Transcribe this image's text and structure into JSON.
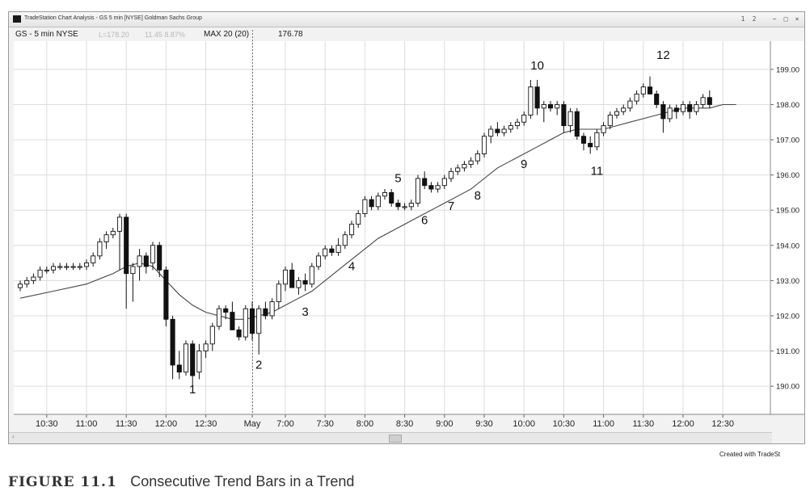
{
  "window": {
    "title": "TradeStation Chart Analysis - GS 5 min [NYSE] Goldman Sachs Group",
    "buttons": [
      "1",
      "2",
      "−",
      "□",
      "×"
    ]
  },
  "infobar": {
    "symbol": "GS - 5 min NYSE",
    "last": "L=178.20",
    "change": "11.45 8.87%",
    "indicator": "MAX 20 (20)",
    "indicator_value": "176.78"
  },
  "credit": "Created with TradeSt",
  "caption": {
    "label": "FIGURE 11.1",
    "text": "Consecutive Trend Bars in a Trend"
  },
  "colors": {
    "bull": "#ffffff",
    "bear": "#111111",
    "ema": "#444444",
    "grid": "#dcdcdc"
  },
  "chart_data": {
    "type": "candlestick",
    "price_axis": {
      "ticks": [
        "199.00",
        "198.00",
        "197.00",
        "196.00",
        "195.00",
        "194.00",
        "193.00",
        "192.00",
        "191.00",
        "190.00"
      ],
      "ylim": [
        189.2,
        199.8
      ]
    },
    "time_axis": {
      "ticks": [
        {
          "label": "10:30",
          "bar": 4
        },
        {
          "label": "11:00",
          "bar": 10
        },
        {
          "label": "11:30",
          "bar": 16
        },
        {
          "label": "12:00",
          "bar": 22
        },
        {
          "label": "12:30",
          "bar": 28
        },
        {
          "label": "May",
          "bar": 35
        },
        {
          "label": "7:00",
          "bar": 40
        },
        {
          "label": "7:30",
          "bar": 46
        },
        {
          "label": "8:00",
          "bar": 52
        },
        {
          "label": "8:30",
          "bar": 58
        },
        {
          "label": "9:00",
          "bar": 64
        },
        {
          "label": "9:30",
          "bar": 70
        },
        {
          "label": "10:00",
          "bar": 76
        },
        {
          "label": "10:30",
          "bar": 82
        },
        {
          "label": "11:00",
          "bar": 88
        },
        {
          "label": "11:30",
          "bar": 94
        },
        {
          "label": "12:00",
          "bar": 100
        },
        {
          "label": "12:30",
          "bar": 106
        }
      ]
    },
    "session_break_bar": 35,
    "candles": [
      [
        192.8,
        193.0,
        192.7,
        192.9
      ],
      [
        192.9,
        193.1,
        192.8,
        193.0
      ],
      [
        193.0,
        193.2,
        192.9,
        193.1
      ],
      [
        193.1,
        193.4,
        193.0,
        193.3
      ],
      [
        193.3,
        193.4,
        193.2,
        193.3
      ],
      [
        193.3,
        193.5,
        193.2,
        193.4
      ],
      [
        193.4,
        193.5,
        193.3,
        193.4
      ],
      [
        193.4,
        193.5,
        193.3,
        193.4
      ],
      [
        193.4,
        193.5,
        193.3,
        193.4
      ],
      [
        193.4,
        193.5,
        193.3,
        193.4
      ],
      [
        193.4,
        193.6,
        193.3,
        193.5
      ],
      [
        193.5,
        193.8,
        193.4,
        193.7
      ],
      [
        193.7,
        194.2,
        193.6,
        194.1
      ],
      [
        194.1,
        194.4,
        193.9,
        194.3
      ],
      [
        194.3,
        194.5,
        194.2,
        194.4
      ],
      [
        194.4,
        194.9,
        193.3,
        194.8
      ],
      [
        194.8,
        194.9,
        192.2,
        193.2
      ],
      [
        193.2,
        193.5,
        192.4,
        193.4
      ],
      [
        193.4,
        193.9,
        193.0,
        193.7
      ],
      [
        193.7,
        193.8,
        193.2,
        193.4
      ],
      [
        193.5,
        194.1,
        193.3,
        194.0
      ],
      [
        194.0,
        194.1,
        193.1,
        193.3
      ],
      [
        193.3,
        193.4,
        191.7,
        191.9
      ],
      [
        191.9,
        192.0,
        190.2,
        190.6
      ],
      [
        190.6,
        191.0,
        190.2,
        190.4
      ],
      [
        190.4,
        191.3,
        190.3,
        191.2
      ],
      [
        191.2,
        191.3,
        190.0,
        190.3
      ],
      [
        190.4,
        191.2,
        190.2,
        191.0
      ],
      [
        191.0,
        191.3,
        190.8,
        191.2
      ],
      [
        191.2,
        191.8,
        191.0,
        191.7
      ],
      [
        191.7,
        192.3,
        191.6,
        192.2
      ],
      [
        192.2,
        192.3,
        191.9,
        192.1
      ],
      [
        192.1,
        192.4,
        191.6,
        191.6
      ],
      [
        191.6,
        191.7,
        191.3,
        191.4
      ],
      [
        191.4,
        192.3,
        191.3,
        192.2
      ],
      [
        192.2,
        192.4,
        191.3,
        191.5
      ],
      [
        191.5,
        192.3,
        190.9,
        192.2
      ],
      [
        192.2,
        192.4,
        191.9,
        192.0
      ],
      [
        192.0,
        192.5,
        191.9,
        192.4
      ],
      [
        192.4,
        193.0,
        192.2,
        192.9
      ],
      [
        192.9,
        193.4,
        192.7,
        193.3
      ],
      [
        193.3,
        193.5,
        192.8,
        192.8
      ],
      [
        192.8,
        193.1,
        192.6,
        193.0
      ],
      [
        193.0,
        193.2,
        192.7,
        192.9
      ],
      [
        192.9,
        193.5,
        192.8,
        193.4
      ],
      [
        193.4,
        193.8,
        193.3,
        193.7
      ],
      [
        193.7,
        194.0,
        193.6,
        193.9
      ],
      [
        193.9,
        194.0,
        193.7,
        193.8
      ],
      [
        193.8,
        194.2,
        193.7,
        194.0
      ],
      [
        194.0,
        194.4,
        193.9,
        194.3
      ],
      [
        194.3,
        194.7,
        194.2,
        194.6
      ],
      [
        194.6,
        195.0,
        194.5,
        194.9
      ],
      [
        194.9,
        195.4,
        194.8,
        195.3
      ],
      [
        195.3,
        195.4,
        195.0,
        195.1
      ],
      [
        195.1,
        195.5,
        195.0,
        195.4
      ],
      [
        195.4,
        195.6,
        195.3,
        195.5
      ],
      [
        195.5,
        195.6,
        195.1,
        195.2
      ],
      [
        195.2,
        195.3,
        195.0,
        195.1
      ],
      [
        195.1,
        195.2,
        195.0,
        195.1
      ],
      [
        195.1,
        195.3,
        195.0,
        195.2
      ],
      [
        195.2,
        196.0,
        195.1,
        195.9
      ],
      [
        195.9,
        196.1,
        195.6,
        195.7
      ],
      [
        195.7,
        195.8,
        195.5,
        195.6
      ],
      [
        195.6,
        195.8,
        195.5,
        195.7
      ],
      [
        195.7,
        196.0,
        195.6,
        195.9
      ],
      [
        195.9,
        196.2,
        195.8,
        196.1
      ],
      [
        196.1,
        196.3,
        196.0,
        196.2
      ],
      [
        196.2,
        196.4,
        196.1,
        196.3
      ],
      [
        196.3,
        196.5,
        196.2,
        196.4
      ],
      [
        196.4,
        196.7,
        196.3,
        196.6
      ],
      [
        196.6,
        197.2,
        196.5,
        197.1
      ],
      [
        197.1,
        197.4,
        196.9,
        197.3
      ],
      [
        197.3,
        197.5,
        197.1,
        197.2
      ],
      [
        197.2,
        197.4,
        197.1,
        197.3
      ],
      [
        197.3,
        197.5,
        197.2,
        197.4
      ],
      [
        197.4,
        197.6,
        197.3,
        197.5
      ],
      [
        197.5,
        197.8,
        197.4,
        197.7
      ],
      [
        197.7,
        198.7,
        197.6,
        198.5
      ],
      [
        198.5,
        198.7,
        197.7,
        197.9
      ],
      [
        197.9,
        198.1,
        197.5,
        198.0
      ],
      [
        198.0,
        198.1,
        197.8,
        197.9
      ],
      [
        197.9,
        198.1,
        197.7,
        198.0
      ],
      [
        198.0,
        198.1,
        197.2,
        197.4
      ],
      [
        197.4,
        197.9,
        197.2,
        197.8
      ],
      [
        197.8,
        197.9,
        197.0,
        197.1
      ],
      [
        197.1,
        197.2,
        196.7,
        196.9
      ],
      [
        196.9,
        197.1,
        196.6,
        196.8
      ],
      [
        196.8,
        197.3,
        196.7,
        197.2
      ],
      [
        197.2,
        197.5,
        197.1,
        197.4
      ],
      [
        197.4,
        197.8,
        197.3,
        197.7
      ],
      [
        197.7,
        197.9,
        197.6,
        197.8
      ],
      [
        197.8,
        198.0,
        197.7,
        197.9
      ],
      [
        197.9,
        198.2,
        197.8,
        198.1
      ],
      [
        198.1,
        198.4,
        198.0,
        198.3
      ],
      [
        198.3,
        198.6,
        198.2,
        198.5
      ],
      [
        198.5,
        198.8,
        198.3,
        198.3
      ],
      [
        198.3,
        198.4,
        197.9,
        198.0
      ],
      [
        198.0,
        198.1,
        197.2,
        197.6
      ],
      [
        197.6,
        198.0,
        197.5,
        197.9
      ],
      [
        197.9,
        198.0,
        197.6,
        197.8
      ],
      [
        197.8,
        198.1,
        197.7,
        198.0
      ],
      [
        198.0,
        198.1,
        197.6,
        197.8
      ],
      [
        197.8,
        198.1,
        197.7,
        198.0
      ],
      [
        198.0,
        198.3,
        197.9,
        198.2
      ],
      [
        198.2,
        198.4,
        197.9,
        198.0
      ]
    ],
    "ema": [
      [
        0,
        192.5
      ],
      [
        5,
        192.7
      ],
      [
        10,
        192.9
      ],
      [
        14,
        193.2
      ],
      [
        16,
        193.4
      ],
      [
        18,
        193.5
      ],
      [
        20,
        193.4
      ],
      [
        22,
        193.0
      ],
      [
        24,
        192.6
      ],
      [
        26,
        192.3
      ],
      [
        28,
        192.1
      ],
      [
        30,
        192.0
      ],
      [
        32,
        191.9
      ],
      [
        34,
        191.9
      ],
      [
        36,
        192.0
      ],
      [
        38,
        192.1
      ],
      [
        40,
        192.3
      ],
      [
        42,
        192.5
      ],
      [
        44,
        192.7
      ],
      [
        46,
        193.0
      ],
      [
        48,
        193.3
      ],
      [
        50,
        193.6
      ],
      [
        52,
        193.9
      ],
      [
        54,
        194.2
      ],
      [
        56,
        194.4
      ],
      [
        58,
        194.6
      ],
      [
        60,
        194.8
      ],
      [
        62,
        195.0
      ],
      [
        64,
        195.2
      ],
      [
        66,
        195.4
      ],
      [
        68,
        195.6
      ],
      [
        70,
        195.9
      ],
      [
        72,
        196.2
      ],
      [
        74,
        196.4
      ],
      [
        76,
        196.6
      ],
      [
        78,
        196.8
      ],
      [
        80,
        197.0
      ],
      [
        82,
        197.2
      ],
      [
        84,
        197.3
      ],
      [
        86,
        197.3
      ],
      [
        88,
        197.3
      ],
      [
        90,
        197.4
      ],
      [
        92,
        197.5
      ],
      [
        94,
        197.6
      ],
      [
        96,
        197.7
      ],
      [
        98,
        197.8
      ],
      [
        100,
        197.9
      ],
      [
        102,
        197.9
      ],
      [
        104,
        197.9
      ],
      [
        106,
        198.0
      ],
      [
        108,
        198.0
      ]
    ],
    "annotations": [
      {
        "text": "1",
        "bar": 26,
        "price": 189.8
      },
      {
        "text": "2",
        "bar": 36,
        "price": 190.5
      },
      {
        "text": "3",
        "bar": 43,
        "price": 192.0
      },
      {
        "text": "4",
        "bar": 50,
        "price": 193.3
      },
      {
        "text": "5",
        "bar": 57,
        "price": 195.8
      },
      {
        "text": "6",
        "bar": 61,
        "price": 194.6
      },
      {
        "text": "7",
        "bar": 65,
        "price": 195.0
      },
      {
        "text": "8",
        "bar": 69,
        "price": 195.3
      },
      {
        "text": "9",
        "bar": 76,
        "price": 196.2
      },
      {
        "text": "10",
        "bar": 78,
        "price": 199.0
      },
      {
        "text": "11",
        "bar": 87,
        "price": 196.0
      },
      {
        "text": "12",
        "bar": 97,
        "price": 199.3
      }
    ]
  }
}
